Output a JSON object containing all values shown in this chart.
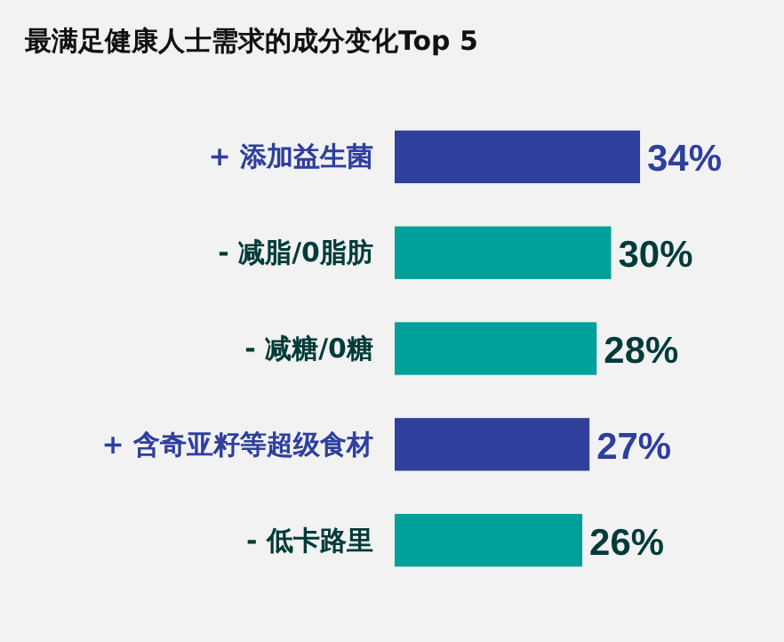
{
  "chart_data": {
    "type": "bar",
    "orientation": "horizontal",
    "title": "最满足健康人士需求的成分变化Top 5",
    "categories": [
      "+ 添加益生菌",
      "- 减脂/0脂肪",
      "- 减糖/0糖",
      "+ 含奇亚籽等超级食材",
      "- 低卡路里"
    ],
    "values": [
      34,
      30,
      28,
      27,
      26
    ],
    "colors": [
      "#2e3f9e",
      "#00a09a",
      "#00a09a",
      "#2e3f9e",
      "#00a09a"
    ],
    "value_labels": [
      "34%",
      "30%",
      "28%",
      "27%",
      "26%"
    ]
  }
}
